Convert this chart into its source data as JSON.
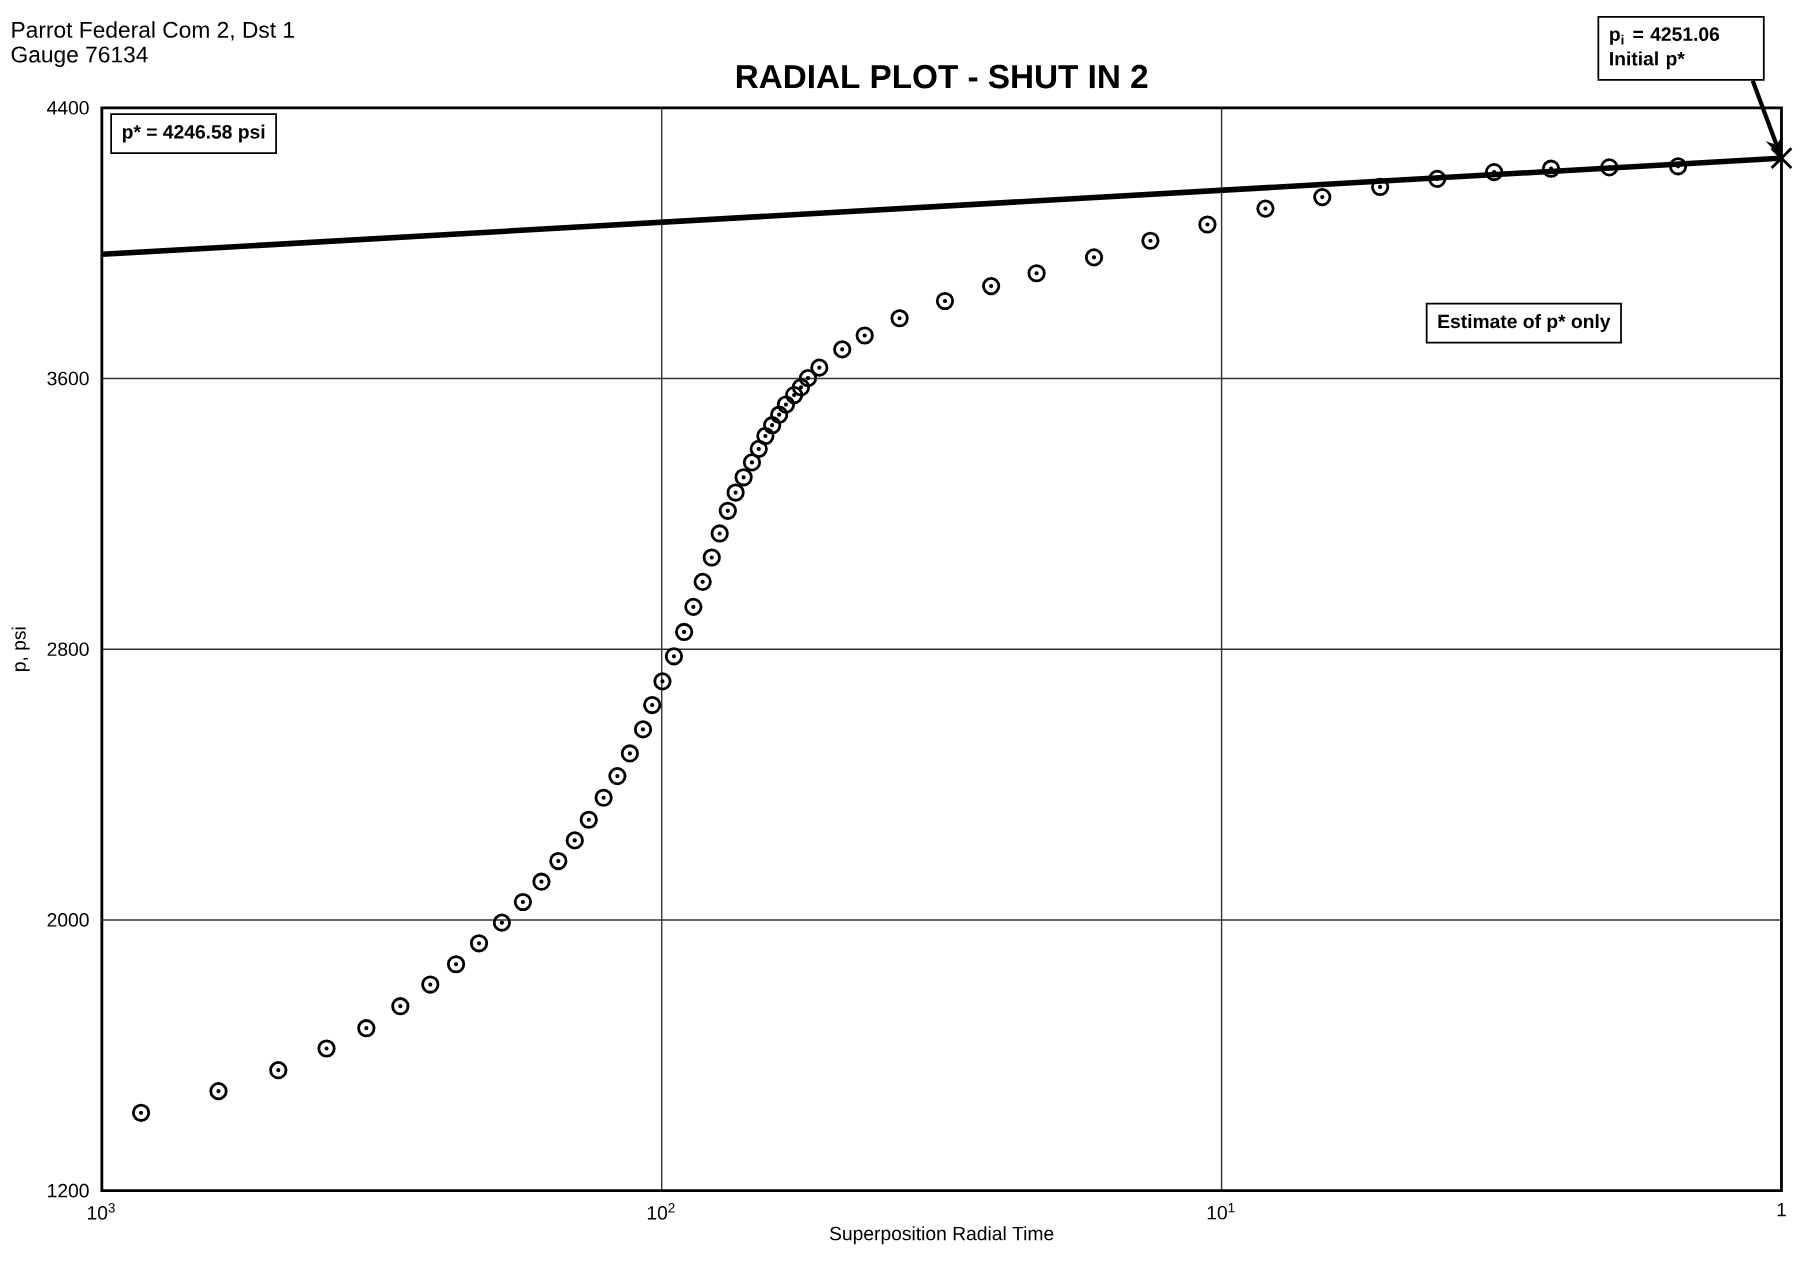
{
  "chart_data": {
    "type": "scatter",
    "title": "RADIAL PLOT - SHUT IN 2",
    "xlabel": "Superposition Radial Time",
    "ylabel": "p, psi",
    "log": "x",
    "grid": true,
    "xlim": [
      1000,
      1
    ],
    "ylim": [
      1200,
      4400
    ],
    "xticks": [
      {
        "value": 1000,
        "label": "10$^{3}$"
      },
      {
        "value": 100,
        "label": "10$^{2}$"
      },
      {
        "value": 10,
        "label": "10$^{1}$"
      },
      1
    ],
    "yticks": [
      1200,
      2000,
      2800,
      3600,
      4400
    ],
    "series": [
      {
        "type": "scatter",
        "marker": "circle",
        "color": "#000000",
        "x": [
          851,
          619,
          484,
          397,
          337,
          293,
          259,
          233,
          212,
          193,
          177,
          164,
          153,
          143,
          135,
          127,
          120,
          114,
          108,
          104,
          99.7,
          95.1,
          91.2,
          87.8,
          84.5,
          81.4,
          78.8,
          76.2,
          73.8,
          71.4,
          69.0,
          67.1,
          65.3,
          63.5,
          61.7,
          60.0,
          58.0,
          56.4,
          54.8,
          52.3,
          47.6,
          43.4,
          37.6,
          31.2,
          25.8,
          21.4,
          16.9,
          13.4,
          10.6,
          8.35,
          6.61,
          5.21,
          4.12,
          3.26,
          2.58,
          2.03,
          1.53
        ],
        "values": [
          1430,
          1494,
          1556,
          1620,
          1680,
          1745,
          1809,
          1869,
          1931,
          1992,
          2053,
          2113,
          2174,
          2235,
          2296,
          2361,
          2425,
          2492,
          2563,
          2635,
          2705,
          2779,
          2851,
          2925,
          2999,
          3071,
          3142,
          3209,
          3263,
          3308,
          3352,
          3392,
          3430,
          3462,
          3493,
          3523,
          3551,
          3574,
          3601,
          3632,
          3686,
          3727,
          3778,
          3829,
          3873,
          3911,
          3958,
          4007,
          4055,
          4102,
          4136,
          4166,
          4190,
          4210,
          4220,
          4224,
          4227
        ]
      },
      {
        "type": "line",
        "color": "#000000",
        "x": [
          1000,
          1
        ],
        "values": [
          3967,
          4251
        ]
      },
      {
        "type": "scatter",
        "marker": "cross",
        "color": "#000000",
        "x": [
          1
        ],
        "values": [
          4251
        ]
      }
    ],
    "annotations": [
      "Parrot Federal Com 2, Dst 1",
      "Gauge 76134",
      "p* = 4246.58 psi",
      "p$_{i}$ = 4251.06 Initial p*",
      "Estimate of p* only"
    ]
  }
}
